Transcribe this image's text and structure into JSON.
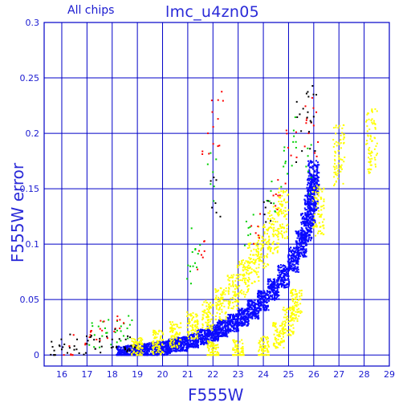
{
  "header": {
    "subset_label": "All chips",
    "title": "lmc_u4zn05"
  },
  "colors": {
    "axis": "#0000c8",
    "text": "#1a1ad0",
    "blue": "#0a0aff",
    "yellow": "#ffff00",
    "green": "#00d000",
    "red": "#ff0000",
    "black": "#000000"
  },
  "chart_data": {
    "type": "scatter",
    "title": "lmc_u4zn05",
    "subtitle": "All chips",
    "xlabel": "F555W",
    "ylabel": "F555W error",
    "xlim": [
      15.3,
      29.0
    ],
    "ylim": [
      -0.01,
      0.3
    ],
    "xticks": [
      "16",
      "17",
      "18",
      "19",
      "20",
      "21",
      "22",
      "23",
      "24",
      "25",
      "26",
      "27",
      "28",
      "29"
    ],
    "yticks": [
      "0",
      "0.05",
      "0.1",
      "0.15",
      "0.2",
      "0.25",
      "0.3"
    ],
    "grid": true,
    "series": [
      {
        "color_name": "blue",
        "points": [
          [
            18.4,
            0.002
          ],
          [
            18.8,
            0.003
          ],
          [
            19.2,
            0.004
          ],
          [
            19.6,
            0.005
          ],
          [
            20.0,
            0.006
          ],
          [
            20.4,
            0.008
          ],
          [
            20.8,
            0.01
          ],
          [
            21.2,
            0.013
          ],
          [
            21.6,
            0.016
          ],
          [
            22.0,
            0.02
          ],
          [
            22.4,
            0.024
          ],
          [
            22.8,
            0.029
          ],
          [
            23.2,
            0.034
          ],
          [
            23.6,
            0.041
          ],
          [
            24.0,
            0.049
          ],
          [
            24.4,
            0.059
          ],
          [
            24.8,
            0.071
          ],
          [
            25.2,
            0.086
          ],
          [
            25.5,
            0.1
          ],
          [
            25.7,
            0.115
          ],
          [
            25.85,
            0.13
          ],
          [
            25.95,
            0.145
          ],
          [
            26.0,
            0.16
          ]
        ]
      },
      {
        "color_name": "yellow",
        "points": [
          [
            19.0,
            0.006
          ],
          [
            19.8,
            0.011
          ],
          [
            20.5,
            0.018
          ],
          [
            21.2,
            0.027
          ],
          [
            21.8,
            0.036
          ],
          [
            22.3,
            0.046
          ],
          [
            22.8,
            0.057
          ],
          [
            23.2,
            0.069
          ],
          [
            23.6,
            0.083
          ],
          [
            24.0,
            0.098
          ],
          [
            24.4,
            0.113
          ],
          [
            24.8,
            0.128
          ],
          [
            22.0,
            0.003
          ],
          [
            23.0,
            0.004
          ],
          [
            24.0,
            0.006
          ],
          [
            24.6,
            0.018
          ],
          [
            25.0,
            0.03
          ],
          [
            25.3,
            0.045
          ],
          [
            26.2,
            0.13
          ],
          [
            27.0,
            0.18
          ],
          [
            28.3,
            0.193
          ]
        ]
      },
      {
        "color_name": "green",
        "points": [
          [
            17.3,
            0.018
          ],
          [
            17.8,
            0.02
          ],
          [
            18.2,
            0.022
          ],
          [
            18.6,
            0.024
          ],
          [
            21.1,
            0.08
          ],
          [
            21.3,
            0.095
          ],
          [
            22.0,
            0.165
          ],
          [
            23.4,
            0.108
          ],
          [
            24.3,
            0.148
          ],
          [
            24.8,
            0.17
          ],
          [
            25.3,
            0.187
          ],
          [
            25.7,
            0.17
          ]
        ]
      },
      {
        "color_name": "red",
        "points": [
          [
            16.3,
            0.008
          ],
          [
            17.1,
            0.016
          ],
          [
            17.6,
            0.022
          ],
          [
            18.3,
            0.024
          ],
          [
            21.6,
            0.088
          ],
          [
            21.8,
            0.2
          ],
          [
            22.2,
            0.213
          ],
          [
            23.7,
            0.11
          ],
          [
            24.5,
            0.145
          ],
          [
            25.1,
            0.18
          ],
          [
            25.8,
            0.2
          ],
          [
            26.0,
            0.207
          ]
        ]
      },
      {
        "color_name": "black",
        "points": [
          [
            15.7,
            0.004
          ],
          [
            16.0,
            0.005
          ],
          [
            16.5,
            0.008
          ],
          [
            17.0,
            0.01
          ],
          [
            17.5,
            0.012
          ],
          [
            18.0,
            0.014
          ],
          [
            18.5,
            0.007
          ],
          [
            18.7,
            0.004
          ],
          [
            22.1,
            0.137
          ],
          [
            24.1,
            0.12
          ],
          [
            25.5,
            0.202
          ],
          [
            25.9,
            0.21
          ],
          [
            26.0,
            0.215
          ]
        ]
      }
    ]
  }
}
